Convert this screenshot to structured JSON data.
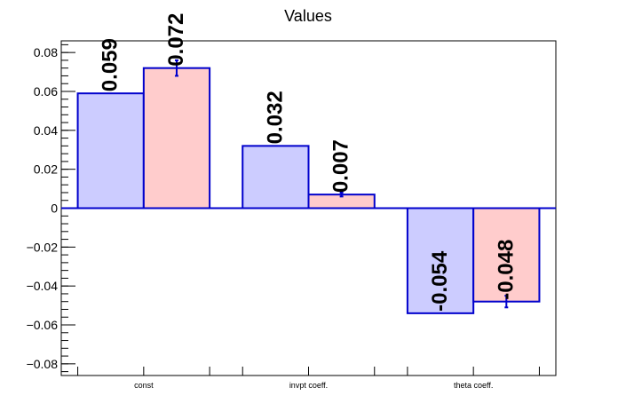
{
  "chart_data": {
    "type": "bar",
    "title": "Values",
    "xlabel": "",
    "ylabel": "",
    "categories": [
      "const",
      "invpt coeff.",
      "theta coeff."
    ],
    "ylim": [
      -0.086,
      0.086
    ],
    "yticks": [
      -0.08,
      -0.06,
      -0.04,
      -0.02,
      0,
      0.02,
      0.04,
      0.06,
      0.08
    ],
    "ytick_labels": [
      "−0.08",
      "−0.06",
      "−0.04",
      "−0.02",
      "0",
      "0.02",
      "0.04",
      "0.06",
      "0.08"
    ],
    "grid": false,
    "series": [
      {
        "values": [
          0.059,
          0.032,
          -0.054
        ],
        "labels": [
          "0.059",
          "0.032",
          "-0.054"
        ],
        "errors": [
          0,
          0,
          0
        ],
        "color": "#ccccff"
      },
      {
        "values": [
          0.072,
          0.007,
          -0.048
        ],
        "labels": [
          "0.072",
          "0.007",
          "-0.048"
        ],
        "errors": [
          0.004,
          0.001,
          0.003
        ],
        "color": "#ffcccc"
      }
    ],
    "edge_color": "#0000cc",
    "zero_line_color": "#0000cc"
  }
}
